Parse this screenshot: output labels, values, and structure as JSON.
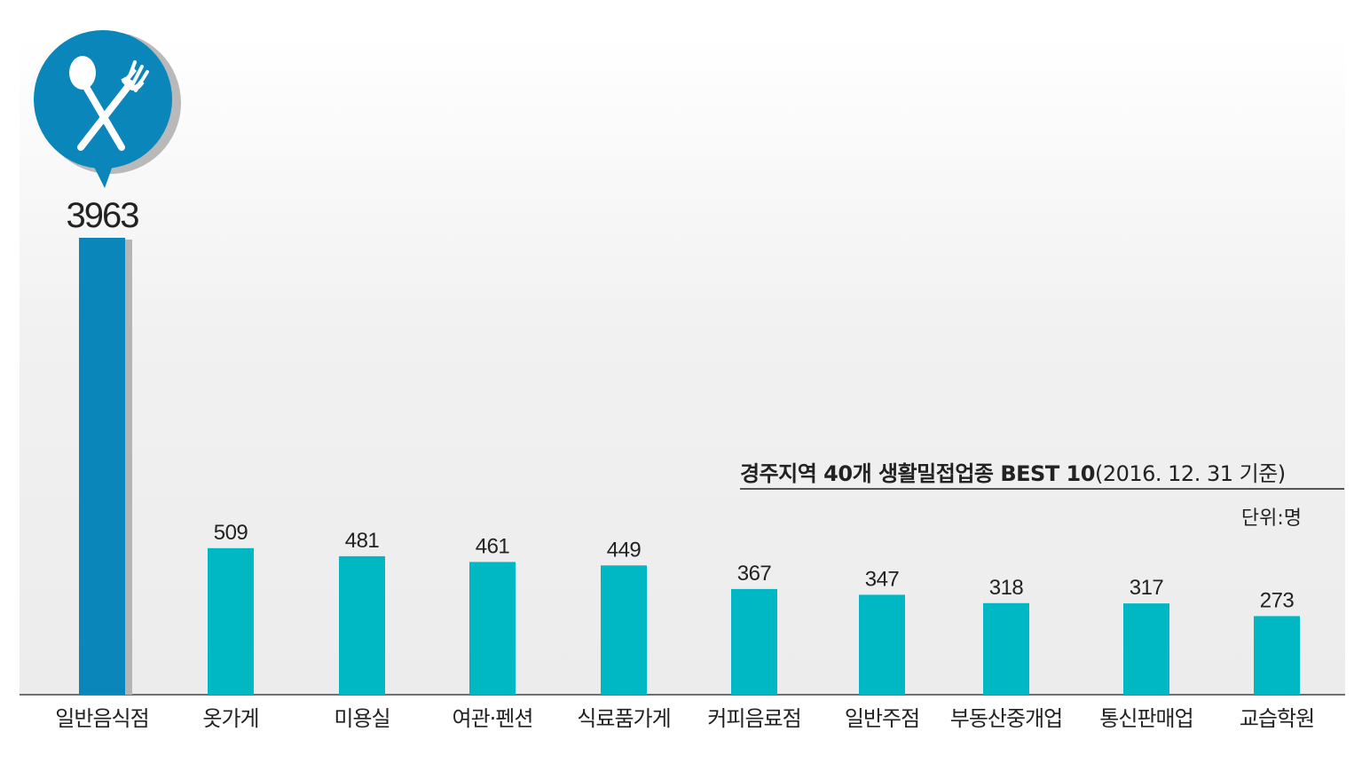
{
  "title_main": "경주지역 40개 생활밀접업종 BEST 10",
  "title_date": "(2016. 12. 31 기준)",
  "unit_label": "단위:명",
  "colors": {
    "highlight_bar": "#0a86bb",
    "bar": "#00b8c4",
    "icon_bubble": "#0a86bb"
  },
  "icon": "spoon-fork-icon",
  "chart_data": {
    "type": "bar",
    "title": "경주지역 40개 생활밀접업종 BEST 10(2016. 12. 31 기준)",
    "unit": "단위:명",
    "categories": [
      "일반음식점",
      "옷가게",
      "미용실",
      "여관·펜션",
      "식료품가게",
      "커피음료점",
      "일반주점",
      "부동산중개업",
      "통신판매업",
      "교습학원"
    ],
    "values": [
      3963,
      509,
      481,
      461,
      449,
      367,
      347,
      318,
      317,
      273
    ],
    "highlight_index": 0,
    "grid": false,
    "legend": "none"
  }
}
